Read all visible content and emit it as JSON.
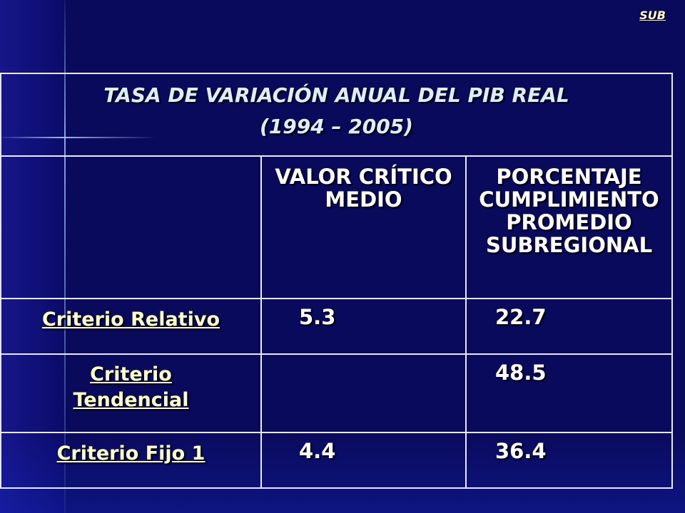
{
  "link": "SUB",
  "table": {
    "title": "TASA DE VARIACIÓN ANUAL DEL PIB REAL",
    "subtitle": "(1994 – 2005)",
    "header": [
      "VALOR CRÍTICO MEDIO",
      "PORCENTAJE CUMPLIMIENTO PROMEDIO SUBREGIONAL"
    ],
    "rows": [
      [
        "Criterio Relativo",
        5.3,
        22.7
      ],
      [
        "Criterio Tendencial",
        null,
        48.5
      ],
      [
        "Criterio Fijo 1",
        4.4,
        36.4
      ]
    ]
  }
}
